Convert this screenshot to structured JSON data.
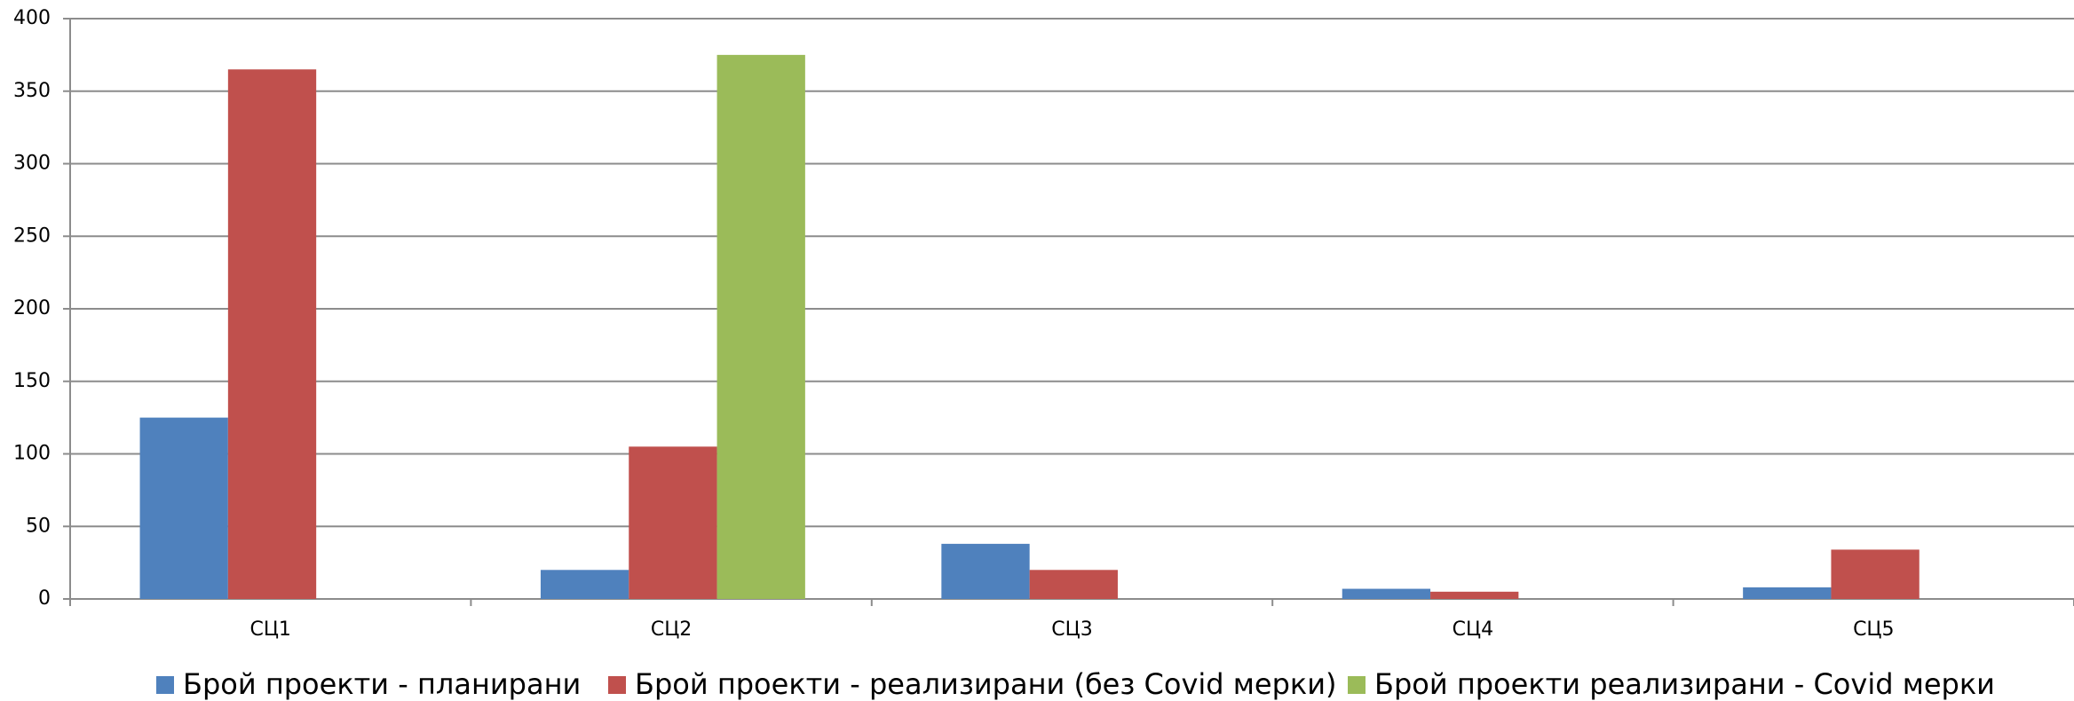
{
  "chart_data": {
    "type": "bar",
    "categories": [
      "СЦ1",
      "СЦ2",
      "СЦ3",
      "СЦ4",
      "СЦ5"
    ],
    "series": [
      {
        "name": "Брой проекти - планирани",
        "color": "#4f81bd",
        "values": [
          125,
          20,
          38,
          7,
          8
        ]
      },
      {
        "name": "Брой проекти - реализирани (без Covid мерки)",
        "color": "#c0504d",
        "values": [
          365,
          105,
          20,
          5,
          34
        ]
      },
      {
        "name": "Брой проекти реализирани - Covid мерки",
        "color": "#9bbb59",
        "values": [
          null,
          375,
          null,
          null,
          null
        ]
      }
    ],
    "ylim": [
      0,
      400
    ],
    "yticks": [
      0,
      50,
      100,
      150,
      200,
      250,
      300,
      350,
      400
    ],
    "grid": true,
    "legend": "bottom"
  }
}
